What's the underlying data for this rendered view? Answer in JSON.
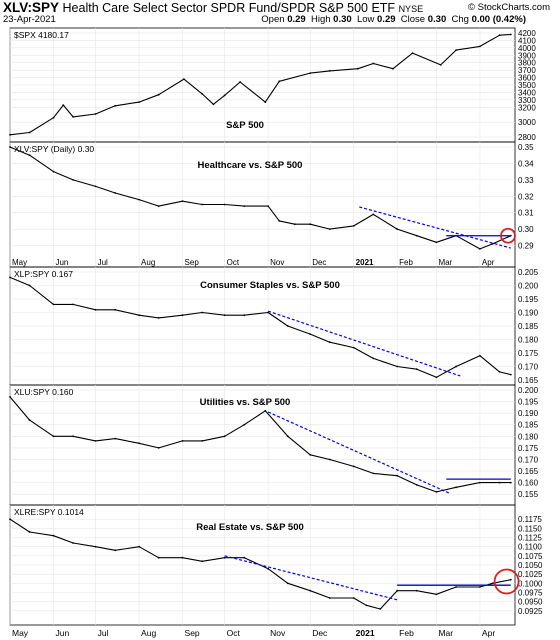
{
  "header": {
    "ticker": "XLV:SPY",
    "title": "Health Care Select Sector SPDR Fund/SPDR S&P 500 ETF",
    "exchange": "NYSE",
    "date": "23-Apr-2021",
    "credit": "© StockCharts.com",
    "ohlc": {
      "open_label": "Open",
      "open": "0.29",
      "high_label": "High",
      "high": "0.30",
      "low_label": "Low",
      "low": "0.29",
      "close_label": "Close",
      "close": "0.30",
      "chg_label": "Chg",
      "chg": "0.00 (0.42%)"
    }
  },
  "chart_data": [
    {
      "type": "line",
      "legend": "$SPX 4180.17",
      "annotation": "S&P 500",
      "ylim": [
        2800,
        4200
      ],
      "yticks": [
        "4200",
        "4100",
        "4000",
        "3900",
        "3800",
        "3700",
        "3600",
        "3500",
        "3400",
        "3300",
        "3200",
        "3000",
        "2800"
      ],
      "x": [
        "2020-05-01",
        "2020-05-15",
        "2020-06-01",
        "2020-06-08",
        "2020-06-15",
        "2020-07-01",
        "2020-07-15",
        "2020-08-01",
        "2020-08-15",
        "2020-09-02",
        "2020-09-15",
        "2020-09-23",
        "2020-10-01",
        "2020-10-12",
        "2020-10-30",
        "2020-11-09",
        "2020-12-01",
        "2020-12-15",
        "2021-01-04",
        "2021-01-15",
        "2021-01-29",
        "2021-02-12",
        "2021-03-04",
        "2021-03-15",
        "2021-04-01",
        "2021-04-15",
        "2021-04-23"
      ],
      "values": [
        2830,
        2860,
        3060,
        3230,
        3070,
        3110,
        3220,
        3270,
        3370,
        3580,
        3380,
        3240,
        3360,
        3540,
        3270,
        3550,
        3660,
        3690,
        3720,
        3790,
        3720,
        3930,
        3770,
        3970,
        4020,
        4170,
        4180
      ]
    },
    {
      "type": "line",
      "legend": "XLV:SPY (Daily) 0.30",
      "annotation": "Healthcare vs. S&P 500",
      "ylim": [
        0.28,
        0.35
      ],
      "yticks": [
        "0.35",
        "0.34",
        "0.33",
        "0.32",
        "0.31",
        "0.30",
        "0.29"
      ],
      "x": [
        "2020-05-01",
        "2020-05-15",
        "2020-06-01",
        "2020-06-15",
        "2020-07-01",
        "2020-07-15",
        "2020-08-01",
        "2020-08-15",
        "2020-09-01",
        "2020-09-15",
        "2020-10-01",
        "2020-10-15",
        "2020-11-01",
        "2020-11-09",
        "2020-11-20",
        "2020-12-01",
        "2020-12-15",
        "2021-01-01",
        "2021-01-15",
        "2021-02-01",
        "2021-02-15",
        "2021-03-01",
        "2021-03-15",
        "2021-04-01",
        "2021-04-10",
        "2021-04-23"
      ],
      "values": [
        0.35,
        0.345,
        0.335,
        0.33,
        0.326,
        0.322,
        0.318,
        0.314,
        0.317,
        0.315,
        0.315,
        0.314,
        0.314,
        0.305,
        0.303,
        0.303,
        0.3,
        0.302,
        0.309,
        0.3,
        0.296,
        0.292,
        0.296,
        0.288,
        0.291,
        0.296
      ]
    },
    {
      "type": "line",
      "legend": "XLP:SPY 0.167",
      "annotation": "Consumer Staples vs. S&P 500",
      "ylim": [
        0.165,
        0.205
      ],
      "yticks": [
        "0.205",
        "0.200",
        "0.195",
        "0.190",
        "0.185",
        "0.180",
        "0.175",
        "0.170",
        "0.165"
      ],
      "x": [
        "2020-05-01",
        "2020-05-15",
        "2020-06-01",
        "2020-06-15",
        "2020-07-01",
        "2020-07-15",
        "2020-08-01",
        "2020-08-15",
        "2020-09-01",
        "2020-09-15",
        "2020-10-01",
        "2020-10-15",
        "2020-11-01",
        "2020-11-15",
        "2020-12-01",
        "2020-12-15",
        "2021-01-01",
        "2021-01-15",
        "2021-02-01",
        "2021-02-15",
        "2021-03-01",
        "2021-03-15",
        "2021-04-01",
        "2021-04-15",
        "2021-04-23"
      ],
      "values": [
        0.203,
        0.2,
        0.193,
        0.193,
        0.191,
        0.191,
        0.189,
        0.188,
        0.189,
        0.19,
        0.189,
        0.189,
        0.19,
        0.185,
        0.182,
        0.179,
        0.177,
        0.173,
        0.17,
        0.169,
        0.166,
        0.17,
        0.174,
        0.168,
        0.167
      ]
    },
    {
      "type": "line",
      "legend": "XLU:SPY 0.160",
      "annotation": "Utilities vs. S&P 500",
      "ylim": [
        0.1525,
        0.2
      ],
      "yticks": [
        "0.200",
        "0.195",
        "0.190",
        "0.185",
        "0.180",
        "0.175",
        "0.170",
        "0.165",
        "0.160",
        "0.155"
      ],
      "x": [
        "2020-05-01",
        "2020-05-15",
        "2020-06-01",
        "2020-06-15",
        "2020-07-01",
        "2020-07-15",
        "2020-08-01",
        "2020-08-15",
        "2020-09-01",
        "2020-09-15",
        "2020-10-01",
        "2020-10-15",
        "2020-10-30",
        "2020-11-15",
        "2020-12-01",
        "2020-12-15",
        "2021-01-01",
        "2021-01-15",
        "2021-02-01",
        "2021-02-15",
        "2021-03-01",
        "2021-03-15",
        "2021-04-01",
        "2021-04-15",
        "2021-04-23"
      ],
      "values": [
        0.197,
        0.187,
        0.18,
        0.18,
        0.178,
        0.179,
        0.177,
        0.175,
        0.178,
        0.178,
        0.18,
        0.185,
        0.191,
        0.18,
        0.172,
        0.17,
        0.167,
        0.164,
        0.163,
        0.159,
        0.156,
        0.158,
        0.16,
        0.16,
        0.16
      ]
    },
    {
      "type": "line",
      "legend": "XLRE:SPY 0.1014",
      "annotation": "Real Estate vs. S&P 500",
      "ylim": [
        0.09,
        0.12
      ],
      "yticks": [
        "0.1175",
        "0.1150",
        "0.1125",
        "0.1100",
        "0.1075",
        "0.1050",
        "0.1025",
        "0.1000",
        "0.0975",
        "0.0950",
        "0.0925"
      ],
      "x": [
        "2020-05-01",
        "2020-05-15",
        "2020-06-01",
        "2020-06-15",
        "2020-07-01",
        "2020-07-15",
        "2020-08-01",
        "2020-08-15",
        "2020-09-01",
        "2020-09-15",
        "2020-10-01",
        "2020-10-15",
        "2020-11-01",
        "2020-11-15",
        "2020-12-01",
        "2020-12-15",
        "2021-01-01",
        "2021-01-10",
        "2021-01-20",
        "2021-02-01",
        "2021-02-15",
        "2021-03-01",
        "2021-03-15",
        "2021-04-01",
        "2021-04-10",
        "2021-04-23"
      ],
      "values": [
        0.1175,
        0.114,
        0.113,
        0.111,
        0.11,
        0.109,
        0.11,
        0.107,
        0.107,
        0.106,
        0.107,
        0.107,
        0.104,
        0.1,
        0.098,
        0.096,
        0.096,
        0.094,
        0.093,
        0.098,
        0.098,
        0.097,
        0.099,
        0.099,
        0.1,
        0.101
      ]
    }
  ],
  "x_axis_labels": [
    "May",
    "Jun",
    "Jul",
    "Aug",
    "Sep",
    "Oct",
    "Nov",
    "Dec",
    "2021",
    "Feb",
    "Mar",
    "Apr"
  ],
  "colors": {
    "price": "#000000",
    "trendline": "#0000ee",
    "horizontal": "#0000cc",
    "circle": "#d9201c",
    "grid": "#e6e6e6"
  }
}
